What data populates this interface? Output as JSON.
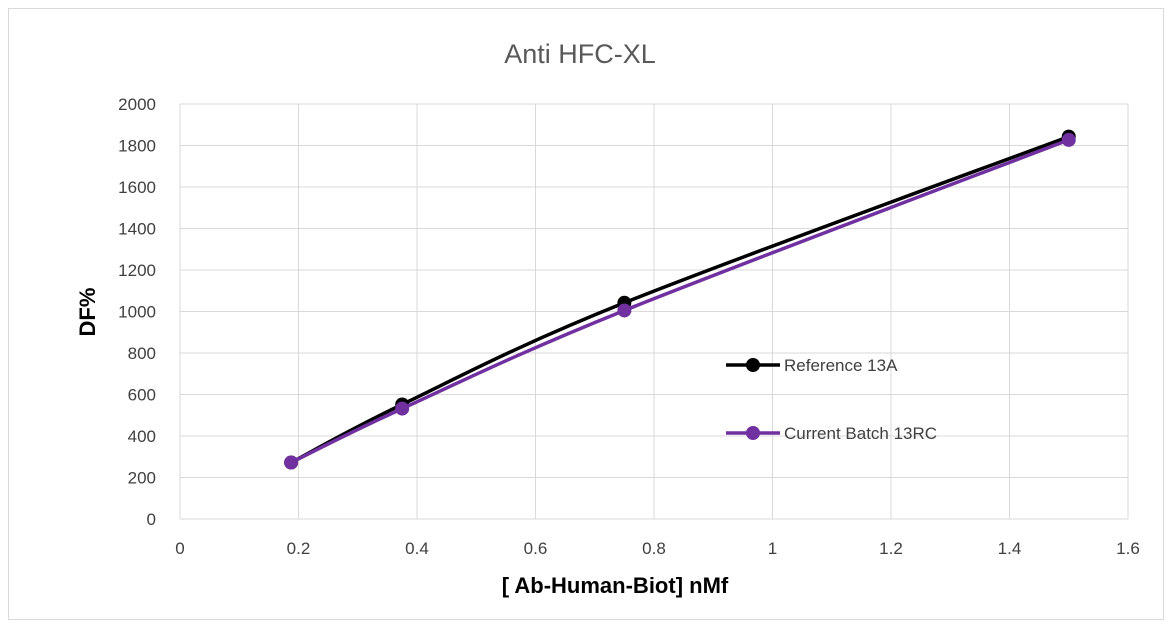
{
  "chart_data": {
    "type": "line",
    "title": "Anti HFC-XL",
    "xlabel": "[ Ab-Human-Biot] nMf",
    "ylabel": "DF%",
    "xlim": [
      0,
      1.6
    ],
    "ylim": [
      0,
      2000
    ],
    "x_ticks": [
      "0",
      "0.2",
      "0.4",
      "0.6",
      "0.8",
      "1",
      "1.2",
      "1.4",
      "1.6"
    ],
    "y_ticks": [
      "0",
      "200",
      "400",
      "600",
      "800",
      "1000",
      "1200",
      "1400",
      "1600",
      "1800",
      "2000"
    ],
    "x_tick_values": [
      0,
      0.2,
      0.4,
      0.6,
      0.8,
      1,
      1.2,
      1.4,
      1.6
    ],
    "y_tick_values": [
      0,
      200,
      400,
      600,
      800,
      1000,
      1200,
      1400,
      1600,
      1800,
      2000
    ],
    "grid": true,
    "legend_position": "right",
    "series": [
      {
        "name": "Reference 13A",
        "color": "#000000",
        "x": [
          0.1875,
          0.375,
          0.75,
          1.5
        ],
        "y": [
          272,
          552,
          1042,
          1843
        ]
      },
      {
        "name": "Current Batch 13RC",
        "color": "#7030a0",
        "x": [
          0.1875,
          0.375,
          0.75,
          1.5
        ],
        "y": [
          272,
          532,
          1005,
          1827
        ]
      }
    ]
  }
}
